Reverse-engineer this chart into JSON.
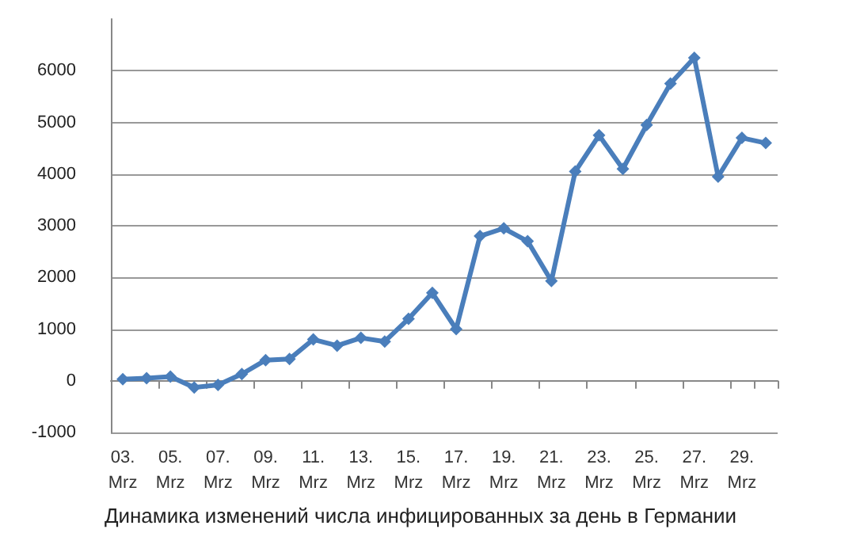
{
  "chart_data": {
    "type": "line",
    "title": "Динамика изменений числа инфицированных за день в Германии",
    "categories": [
      "03. Mrz",
      null,
      "05. Mrz",
      null,
      "07. Mrz",
      null,
      "09. Mrz",
      null,
      "11. Mrz",
      null,
      "13. Mrz",
      null,
      "15. Mrz",
      null,
      "17. Mrz",
      null,
      "19. Mrz",
      null,
      "21. Mrz",
      null,
      "23. Mrz",
      null,
      "25. Mrz",
      null,
      "27. Mrz",
      null,
      "29. Mrz",
      null
    ],
    "series": [
      {
        "color": "#4a7ebb",
        "values": [
          30,
          50,
          80,
          -130,
          -80,
          130,
          400,
          420,
          800,
          680,
          830,
          760,
          1200,
          1700,
          1000,
          2800,
          2950,
          2700,
          1930,
          4050,
          4750,
          4100,
          4950,
          5750,
          6250,
          3950,
          4700,
          4600
        ]
      }
    ],
    "ylim": [
      -1000,
      7000
    ],
    "yticks": [
      -1000,
      0,
      1000,
      2000,
      3000,
      4000,
      5000,
      6000
    ],
    "grid": "y",
    "marker": "diamond",
    "line_style": "solid"
  }
}
